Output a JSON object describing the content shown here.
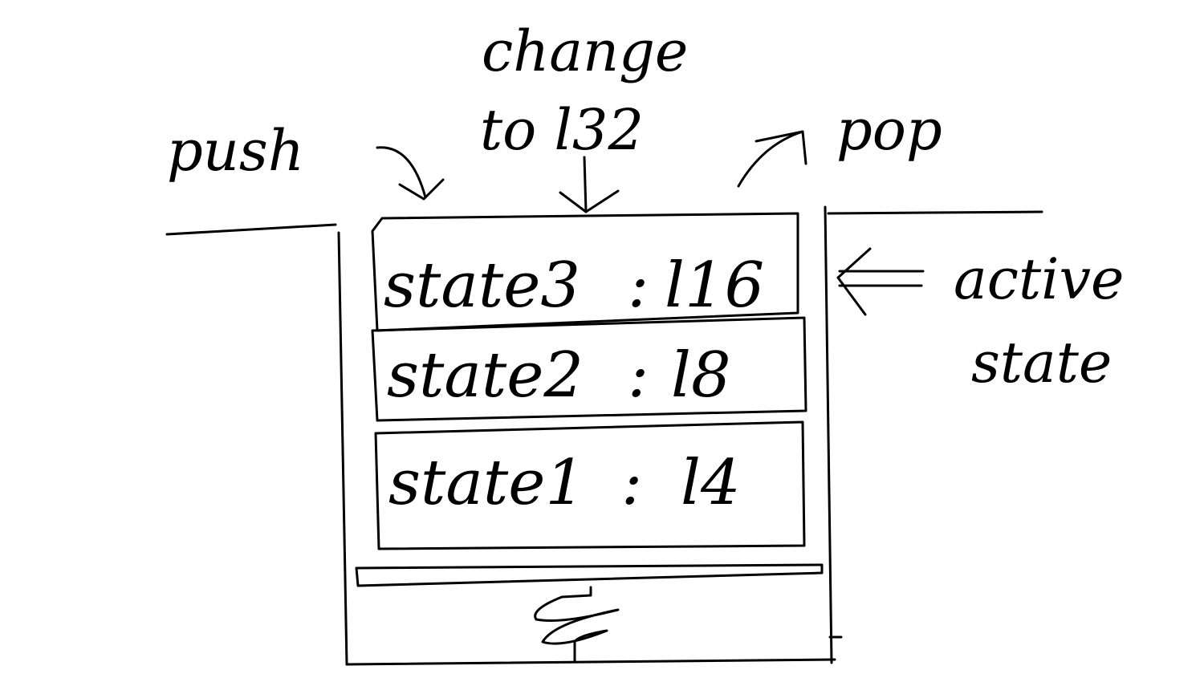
{
  "labels": {
    "push": "push",
    "change_to": "change",
    "change_target": "to l32",
    "pop": "pop",
    "active_state_line1": "active",
    "active_state_line2": "state"
  },
  "stack": {
    "items": [
      {
        "state": "state3",
        "separator": ":",
        "line": "l16"
      },
      {
        "state": "state2",
        "separator": ":",
        "line": "l8"
      },
      {
        "state": "state1",
        "separator": ":",
        "line": "l4"
      }
    ]
  },
  "colors": {
    "ink": "#000000",
    "background": "#ffffff"
  }
}
